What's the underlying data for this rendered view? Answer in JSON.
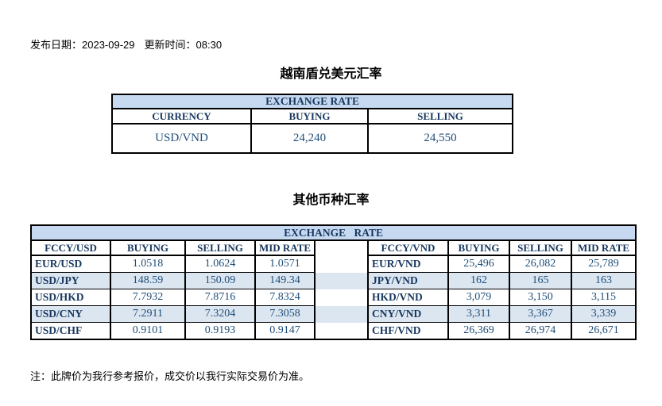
{
  "document": {
    "publish_date_label": "发布日期：",
    "publish_date": "2023-09-29",
    "update_time_label": "更新时间：",
    "update_time": "08:30",
    "footnote": "注：此牌价为我行参考报价，成交价以我行实际交易价为准。"
  },
  "usd_vnd_section": {
    "title": "越南盾兑美元汇率",
    "table": {
      "title": "EXCHANGE RATE",
      "columns": [
        "CURRENCY",
        "BUYING",
        "SELLING"
      ],
      "rows": [
        [
          "USD/VND",
          "24,240",
          "24,550"
        ]
      ]
    }
  },
  "other_section": {
    "title": "其他币种汇率",
    "table": {
      "title": "EXCHANGE RATE",
      "left": {
        "columns": [
          "FCCY/USD",
          "BUYING",
          "SELLING",
          "MID RATE"
        ],
        "rows": [
          [
            "EUR/USD",
            "1.0518",
            "1.0624",
            "1.0571"
          ],
          [
            "USD/JPY",
            "148.59",
            "150.09",
            "149.34"
          ],
          [
            "USD/HKD",
            "7.7932",
            "7.8716",
            "7.8324"
          ],
          [
            "USD/CNY",
            "7.2911",
            "7.3204",
            "7.3058"
          ],
          [
            "USD/CHF",
            "0.9101",
            "0.9193",
            "0.9147"
          ]
        ]
      },
      "right": {
        "columns": [
          "FCCY/VND",
          "BUYING",
          "SELLING",
          "MID RATE"
        ],
        "rows": [
          [
            "EUR/VND",
            "25,496",
            "26,082",
            "25,789"
          ],
          [
            "JPY/VND",
            "162",
            "165",
            "163"
          ],
          [
            "HKD/VND",
            "3,079",
            "3,150",
            "3,115"
          ],
          [
            "CNY/VND",
            "3,311",
            "3,367",
            "3,339"
          ],
          [
            "CHF/VND",
            "26,369",
            "26,974",
            "26,671"
          ]
        ]
      }
    }
  },
  "colors": {
    "table_header_bg": "#c6d9f1",
    "row_stripe_bg": "#dce6f1",
    "heading_text": "#17375e",
    "value_text": "#1f4e79",
    "border": "#000000",
    "title_text": "#000000"
  }
}
